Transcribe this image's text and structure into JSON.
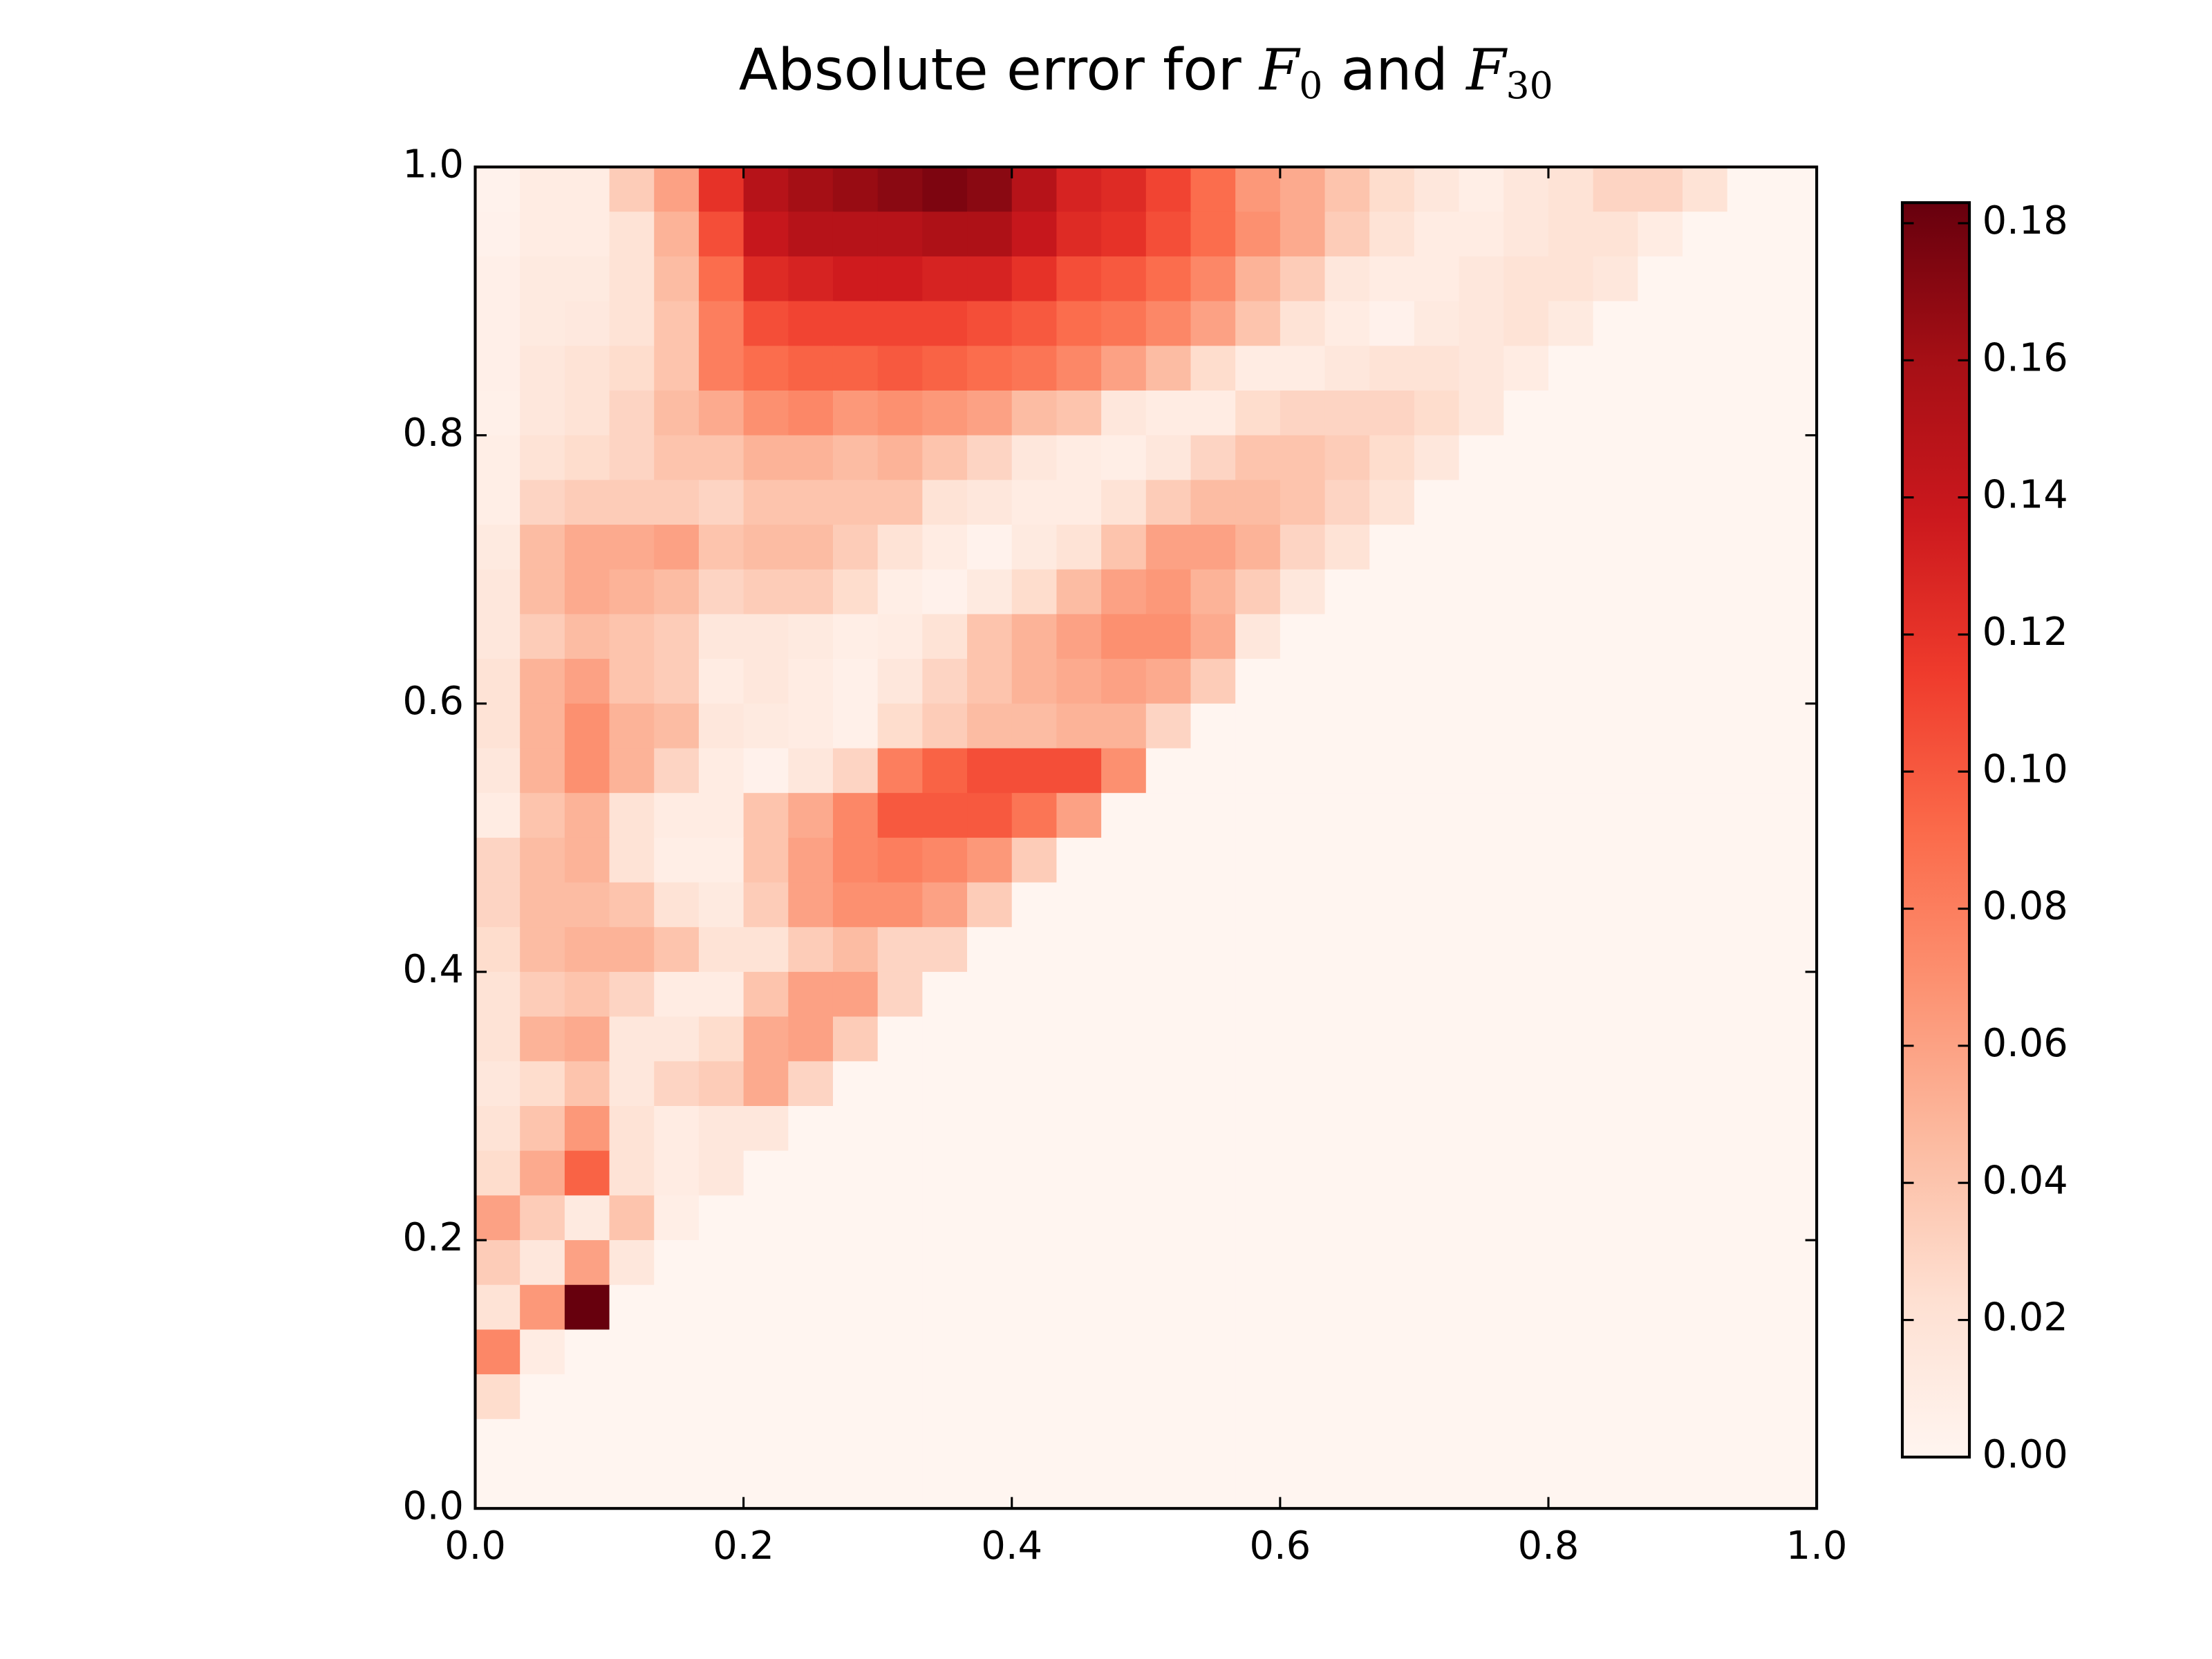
{
  "chart_data": {
    "type": "heatmap",
    "title": [
      "Absolute error for ",
      "F",
      "0",
      " and ",
      "F",
      "30"
    ],
    "cmap": [
      "#fff5f0",
      "#fee0d2",
      "#fcbba1",
      "#fc9272",
      "#fb6a4a",
      "#ef3b2c",
      "#cb181d",
      "#a50f15",
      "#67000d"
    ],
    "clim": [
      0,
      0.183
    ],
    "cticks": [
      {
        "value": 0,
        "label": "0.00"
      },
      {
        "value": 0.02,
        "label": "0.02"
      },
      {
        "value": 0.04,
        "label": "0.04"
      },
      {
        "value": 0.06,
        "label": "0.06"
      },
      {
        "value": 0.08,
        "label": "0.08"
      },
      {
        "value": 0.1,
        "label": "0.10"
      },
      {
        "value": 0.12,
        "label": "0.12"
      },
      {
        "value": 0.14,
        "label": "0.14"
      },
      {
        "value": 0.16,
        "label": "0.16"
      },
      {
        "value": 0.18,
        "label": "0.18"
      }
    ],
    "xlim": [
      0,
      1
    ],
    "ylim": [
      0,
      1
    ],
    "xticks": [
      {
        "value": 0,
        "label": "0.0"
      },
      {
        "value": 0.2,
        "label": "0.2"
      },
      {
        "value": 0.4,
        "label": "0.4"
      },
      {
        "value": 0.6,
        "label": "0.6"
      },
      {
        "value": 0.8,
        "label": "0.8"
      },
      {
        "value": 1,
        "label": "1.0"
      }
    ],
    "yticks": [
      {
        "value": 0,
        "label": "0.0"
      },
      {
        "value": 0.2,
        "label": "0.2"
      },
      {
        "value": 0.4,
        "label": "0.4"
      },
      {
        "value": 0.6,
        "label": "0.6"
      },
      {
        "value": 0.8,
        "label": "0.8"
      },
      {
        "value": 1,
        "label": "1.0"
      }
    ],
    "z": [
      [
        0.003,
        0.01,
        0.01,
        0.035,
        0.06,
        0.12,
        0.15,
        0.16,
        0.165,
        0.17,
        0.175,
        0.17,
        0.15,
        0.13,
        0.125,
        0.11,
        0.09,
        0.065,
        0.055,
        0.04,
        0.025,
        0.015,
        0.008,
        0.015,
        0.02,
        0.03,
        0.03,
        0.02,
        0,
        0
      ],
      [
        0.004,
        0.01,
        0.01,
        0.02,
        0.05,
        0.105,
        0.14,
        0.15,
        0.15,
        0.15,
        0.155,
        0.155,
        0.14,
        0.125,
        0.12,
        0.105,
        0.09,
        0.07,
        0.055,
        0.035,
        0.02,
        0.01,
        0.01,
        0.015,
        0.02,
        0.02,
        0.01,
        0,
        0,
        0
      ],
      [
        0.006,
        0.012,
        0.012,
        0.02,
        0.045,
        0.09,
        0.125,
        0.13,
        0.135,
        0.135,
        0.13,
        0.13,
        0.12,
        0.105,
        0.1,
        0.09,
        0.075,
        0.05,
        0.035,
        0.015,
        0.01,
        0.01,
        0.015,
        0.02,
        0.02,
        0.015,
        0,
        0,
        0,
        0
      ],
      [
        0.006,
        0.012,
        0.014,
        0.02,
        0.04,
        0.08,
        0.105,
        0.11,
        0.11,
        0.11,
        0.11,
        0.105,
        0.1,
        0.09,
        0.085,
        0.075,
        0.06,
        0.04,
        0.02,
        0.01,
        0.004,
        0.012,
        0.015,
        0.02,
        0.012,
        0,
        0,
        0,
        0,
        0
      ],
      [
        0.006,
        0.015,
        0.02,
        0.025,
        0.04,
        0.08,
        0.09,
        0.095,
        0.095,
        0.1,
        0.095,
        0.09,
        0.085,
        0.075,
        0.06,
        0.045,
        0.025,
        0.01,
        0.01,
        0.015,
        0.02,
        0.02,
        0.015,
        0.01,
        0,
        0,
        0,
        0,
        0,
        0
      ],
      [
        0.005,
        0.015,
        0.02,
        0.03,
        0.045,
        0.055,
        0.07,
        0.075,
        0.065,
        0.07,
        0.065,
        0.06,
        0.045,
        0.04,
        0.015,
        0.01,
        0.01,
        0.025,
        0.03,
        0.03,
        0.03,
        0.025,
        0.015,
        0,
        0,
        0,
        0,
        0,
        0,
        0
      ],
      [
        0.008,
        0.02,
        0.025,
        0.03,
        0.04,
        0.04,
        0.05,
        0.05,
        0.045,
        0.05,
        0.04,
        0.03,
        0.015,
        0.01,
        0.008,
        0.015,
        0.03,
        0.04,
        0.04,
        0.035,
        0.025,
        0.015,
        0,
        0,
        0,
        0,
        0,
        0,
        0,
        0
      ],
      [
        0.008,
        0.03,
        0.035,
        0.035,
        0.035,
        0.03,
        0.04,
        0.04,
        0.04,
        0.04,
        0.02,
        0.015,
        0.01,
        0.01,
        0.02,
        0.035,
        0.045,
        0.045,
        0.04,
        0.03,
        0.02,
        0,
        0,
        0,
        0,
        0,
        0,
        0,
        0,
        0
      ],
      [
        0.012,
        0.045,
        0.055,
        0.055,
        0.06,
        0.04,
        0.045,
        0.045,
        0.035,
        0.02,
        0.01,
        0.003,
        0.012,
        0.02,
        0.04,
        0.06,
        0.06,
        0.05,
        0.03,
        0.02,
        0,
        0,
        0,
        0,
        0,
        0,
        0,
        0,
        0,
        0
      ],
      [
        0.015,
        0.045,
        0.055,
        0.05,
        0.045,
        0.03,
        0.035,
        0.035,
        0.025,
        0.008,
        0.004,
        0.012,
        0.025,
        0.045,
        0.06,
        0.065,
        0.05,
        0.035,
        0.015,
        0,
        0,
        0,
        0,
        0,
        0,
        0,
        0,
        0,
        0,
        0
      ],
      [
        0.015,
        0.035,
        0.045,
        0.04,
        0.035,
        0.015,
        0.015,
        0.012,
        0.008,
        0.01,
        0.02,
        0.04,
        0.05,
        0.06,
        0.07,
        0.07,
        0.055,
        0.015,
        0,
        0,
        0,
        0,
        0,
        0,
        0,
        0,
        0,
        0,
        0,
        0
      ],
      [
        0.02,
        0.05,
        0.06,
        0.04,
        0.035,
        0.01,
        0.015,
        0.01,
        0.005,
        0.015,
        0.03,
        0.04,
        0.05,
        0.055,
        0.06,
        0.055,
        0.035,
        0,
        0,
        0,
        0,
        0,
        0,
        0,
        0,
        0,
        0,
        0,
        0,
        0
      ],
      [
        0.02,
        0.05,
        0.07,
        0.05,
        0.045,
        0.015,
        0.012,
        0.01,
        0.005,
        0.025,
        0.035,
        0.045,
        0.045,
        0.05,
        0.05,
        0.03,
        0,
        0,
        0,
        0,
        0,
        0,
        0,
        0,
        0,
        0,
        0,
        0,
        0,
        0
      ],
      [
        0.015,
        0.05,
        0.07,
        0.05,
        0.03,
        0.01,
        0.004,
        0.015,
        0.03,
        0.08,
        0.095,
        0.105,
        0.105,
        0.105,
        0.07,
        0,
        0,
        0,
        0,
        0,
        0,
        0,
        0,
        0,
        0,
        0,
        0,
        0,
        0,
        0
      ],
      [
        0.01,
        0.04,
        0.05,
        0.02,
        0.01,
        0.01,
        0.04,
        0.055,
        0.075,
        0.1,
        0.1,
        0.1,
        0.085,
        0.06,
        0,
        0,
        0,
        0,
        0,
        0,
        0,
        0,
        0,
        0,
        0,
        0,
        0,
        0,
        0,
        0
      ],
      [
        0.03,
        0.045,
        0.05,
        0.02,
        0.008,
        0.008,
        0.04,
        0.06,
        0.075,
        0.08,
        0.075,
        0.065,
        0.035,
        0,
        0,
        0,
        0,
        0,
        0,
        0,
        0,
        0,
        0,
        0,
        0,
        0,
        0,
        0,
        0,
        0
      ],
      [
        0.03,
        0.045,
        0.045,
        0.04,
        0.02,
        0.012,
        0.035,
        0.06,
        0.07,
        0.07,
        0.06,
        0.035,
        0,
        0,
        0,
        0,
        0,
        0,
        0,
        0,
        0,
        0,
        0,
        0,
        0,
        0,
        0,
        0,
        0,
        0
      ],
      [
        0.025,
        0.045,
        0.05,
        0.05,
        0.04,
        0.02,
        0.02,
        0.035,
        0.045,
        0.03,
        0.03,
        0,
        0,
        0,
        0,
        0,
        0,
        0,
        0,
        0,
        0,
        0,
        0,
        0,
        0,
        0,
        0,
        0,
        0,
        0
      ],
      [
        0.02,
        0.035,
        0.04,
        0.03,
        0.01,
        0.01,
        0.04,
        0.06,
        0.06,
        0.03,
        0,
        0,
        0,
        0,
        0,
        0,
        0,
        0,
        0,
        0,
        0,
        0,
        0,
        0,
        0,
        0,
        0,
        0,
        0,
        0
      ],
      [
        0.02,
        0.05,
        0.055,
        0.015,
        0.015,
        0.025,
        0.055,
        0.06,
        0.035,
        0,
        0,
        0,
        0,
        0,
        0,
        0,
        0,
        0,
        0,
        0,
        0,
        0,
        0,
        0,
        0,
        0,
        0,
        0,
        0,
        0
      ],
      [
        0.015,
        0.025,
        0.04,
        0.015,
        0.03,
        0.035,
        0.055,
        0.03,
        0,
        0,
        0,
        0,
        0,
        0,
        0,
        0,
        0,
        0,
        0,
        0,
        0,
        0,
        0,
        0,
        0,
        0,
        0,
        0,
        0,
        0
      ],
      [
        0.02,
        0.04,
        0.065,
        0.02,
        0.01,
        0.015,
        0.015,
        0,
        0,
        0,
        0,
        0,
        0,
        0,
        0,
        0,
        0,
        0,
        0,
        0,
        0,
        0,
        0,
        0,
        0,
        0,
        0,
        0,
        0,
        0
      ],
      [
        0.025,
        0.055,
        0.095,
        0.02,
        0.01,
        0.015,
        0,
        0,
        0,
        0,
        0,
        0,
        0,
        0,
        0,
        0,
        0,
        0,
        0,
        0,
        0,
        0,
        0,
        0,
        0,
        0,
        0,
        0,
        0,
        0
      ],
      [
        0.06,
        0.035,
        0.012,
        0.04,
        0.008,
        0,
        0,
        0,
        0,
        0,
        0,
        0,
        0,
        0,
        0,
        0,
        0,
        0,
        0,
        0,
        0,
        0,
        0,
        0,
        0,
        0,
        0,
        0,
        0,
        0
      ],
      [
        0.035,
        0.015,
        0.06,
        0.015,
        0,
        0,
        0,
        0,
        0,
        0,
        0,
        0,
        0,
        0,
        0,
        0,
        0,
        0,
        0,
        0,
        0,
        0,
        0,
        0,
        0,
        0,
        0,
        0,
        0,
        0
      ],
      [
        0.02,
        0.065,
        0.183,
        0,
        0,
        0,
        0,
        0,
        0,
        0,
        0,
        0,
        0,
        0,
        0,
        0,
        0,
        0,
        0,
        0,
        0,
        0,
        0,
        0,
        0,
        0,
        0,
        0,
        0,
        0
      ],
      [
        0.075,
        0.01,
        0,
        0,
        0,
        0,
        0,
        0,
        0,
        0,
        0,
        0,
        0,
        0,
        0,
        0,
        0,
        0,
        0,
        0,
        0,
        0,
        0,
        0,
        0,
        0,
        0,
        0,
        0,
        0
      ],
      [
        0.025,
        0,
        0,
        0,
        0,
        0,
        0,
        0,
        0,
        0,
        0,
        0,
        0,
        0,
        0,
        0,
        0,
        0,
        0,
        0,
        0,
        0,
        0,
        0,
        0,
        0,
        0,
        0,
        0,
        0
      ],
      [
        0,
        0,
        0,
        0,
        0,
        0,
        0,
        0,
        0,
        0,
        0,
        0,
        0,
        0,
        0,
        0,
        0,
        0,
        0,
        0,
        0,
        0,
        0,
        0,
        0,
        0,
        0,
        0,
        0,
        0
      ],
      [
        0,
        0,
        0,
        0,
        0,
        0,
        0,
        0,
        0,
        0,
        0,
        0,
        0,
        0,
        0,
        0,
        0,
        0,
        0,
        0,
        0,
        0,
        0,
        0,
        0,
        0,
        0,
        0,
        0,
        0
      ]
    ]
  }
}
